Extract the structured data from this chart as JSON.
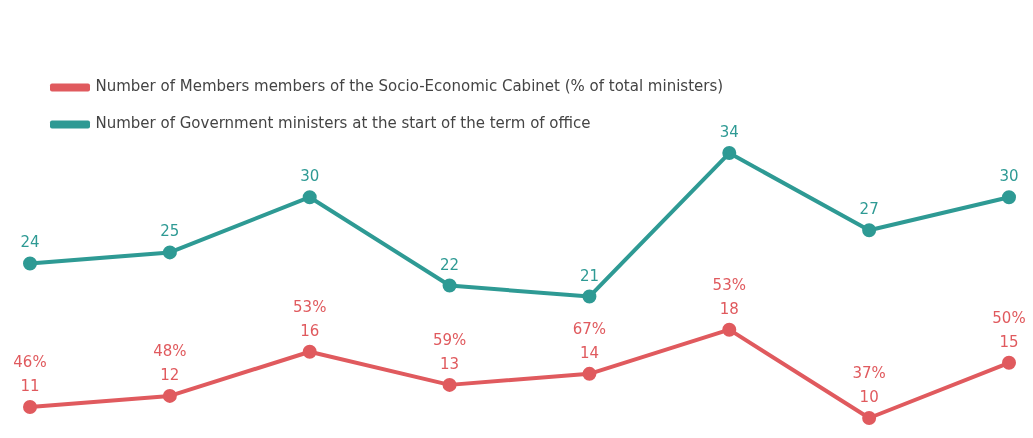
{
  "chart_data": {
    "type": "line",
    "categories": [
      null,
      null,
      null,
      null,
      null,
      null,
      null,
      null
    ],
    "series": [
      {
        "name": "Number of Members members of the Socio-Economic Cabinet (% of total ministers)",
        "color": "#e05a5e",
        "values": [
          11,
          12,
          16,
          13,
          14,
          18,
          10,
          15
        ],
        "value_labels": [
          "46%\n11",
          "48%\n12",
          "53%\n16",
          "59%\n13",
          "67%\n14",
          "53%\n18",
          "37%\n10",
          "50%\n15"
        ]
      },
      {
        "name": "Number of Government ministers at the start of the term of office",
        "color": "#2e9a94",
        "values": [
          24,
          25,
          30,
          22,
          21,
          34,
          27,
          30
        ]
      }
    ],
    "tick_labels": false,
    "data_labels": true,
    "legend": "top left",
    "marker": "circle",
    "line_style": "solid"
  }
}
